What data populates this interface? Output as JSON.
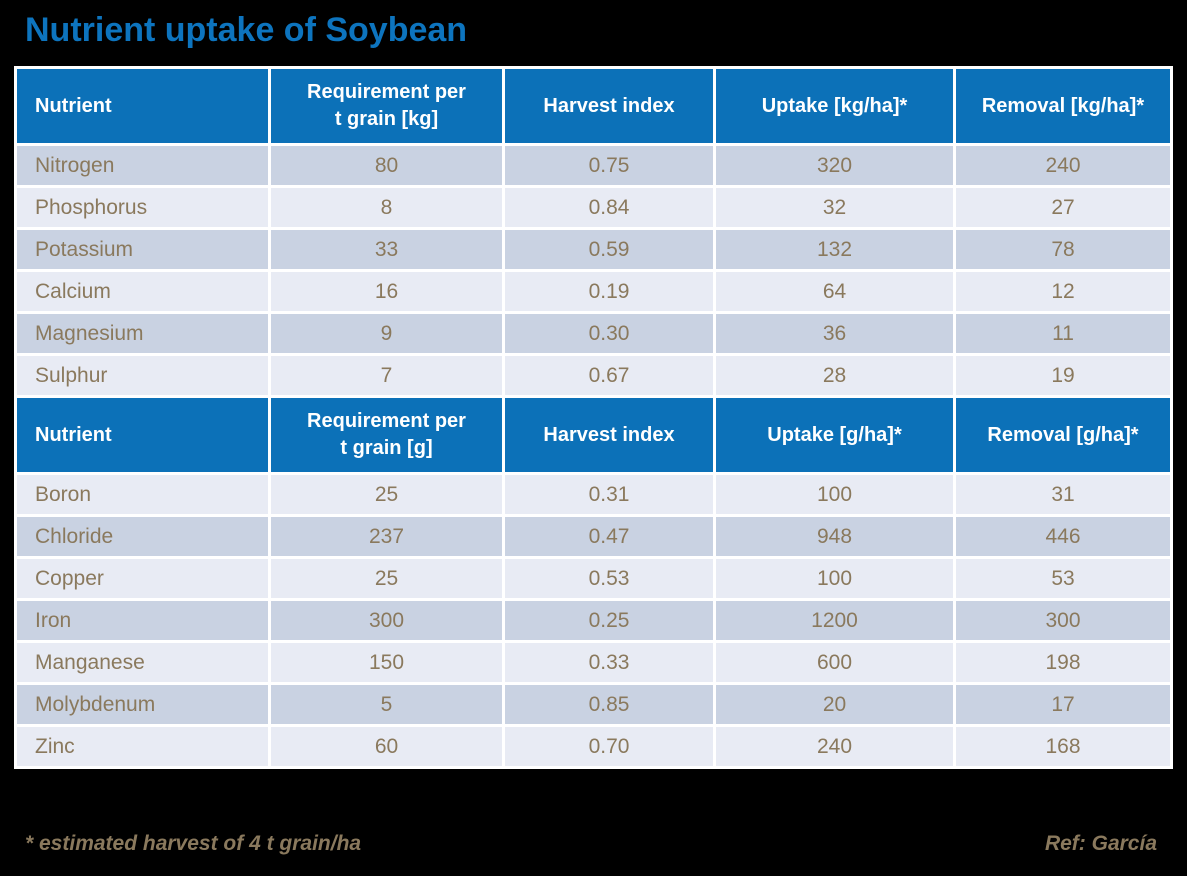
{
  "page_title": "Nutrient uptake of Soybean",
  "footnote": "* estimated harvest of 4 t grain/ha",
  "reference": "Ref: García",
  "colors": {
    "slide_background": "#000000",
    "title_blue": "#0D74BE",
    "header_blue": "#0C71B8",
    "header_text": "#FFFFFF",
    "row_shade_dark": "#C9D2E2",
    "row_shade_light": "#E8EBF4",
    "grid_white": "#FFFFFF",
    "body_text_brown": "#8A795D"
  },
  "chart_data": [
    {
      "type": "table",
      "columns": [
        "Nutrient",
        "Requirement  per\nt grain [kg]",
        "Harvest index",
        "Uptake  [kg/ha]*",
        "Removal [kg/ha]*"
      ],
      "rows": [
        {
          "shade": "dark",
          "cells": [
            "Nitrogen",
            "80",
            "0.75",
            "320",
            "240"
          ]
        },
        {
          "shade": "light",
          "cells": [
            "Phosphorus",
            "8",
            "0.84",
            "32",
            "27"
          ]
        },
        {
          "shade": "dark",
          "cells": [
            "Potassium",
            "33",
            "0.59",
            "132",
            "78"
          ]
        },
        {
          "shade": "light",
          "cells": [
            "Calcium",
            "16",
            "0.19",
            "64",
            "12"
          ]
        },
        {
          "shade": "dark",
          "cells": [
            "Magnesium",
            "9",
            "0.30",
            "36",
            "11"
          ]
        },
        {
          "shade": "light",
          "cells": [
            "Sulphur",
            "7",
            "0.67",
            "28",
            "19"
          ]
        }
      ]
    },
    {
      "type": "table",
      "columns": [
        "Nutrient",
        "Requirement  per\nt grain [g]",
        "Harvest index",
        "Uptake [g/ha]*",
        "Removal [g/ha]*"
      ],
      "rows": [
        {
          "shade": "light",
          "cells": [
            "Boron",
            "25",
            "0.31",
            "100",
            "31"
          ]
        },
        {
          "shade": "dark",
          "cells": [
            "Chloride",
            "237",
            "0.47",
            "948",
            "446"
          ]
        },
        {
          "shade": "light",
          "cells": [
            "Copper",
            "25",
            "0.53",
            "100",
            "53"
          ]
        },
        {
          "shade": "dark",
          "cells": [
            "Iron",
            "300",
            "0.25",
            "1200",
            "300"
          ]
        },
        {
          "shade": "light",
          "cells": [
            "Manganese",
            "150",
            "0.33",
            "600",
            "198"
          ]
        },
        {
          "shade": "dark",
          "cells": [
            "Molybdenum",
            "5",
            "0.85",
            "20",
            "17"
          ]
        },
        {
          "shade": "light",
          "cells": [
            "Zinc",
            "60",
            "0.70",
            "240",
            "168"
          ]
        }
      ]
    }
  ]
}
